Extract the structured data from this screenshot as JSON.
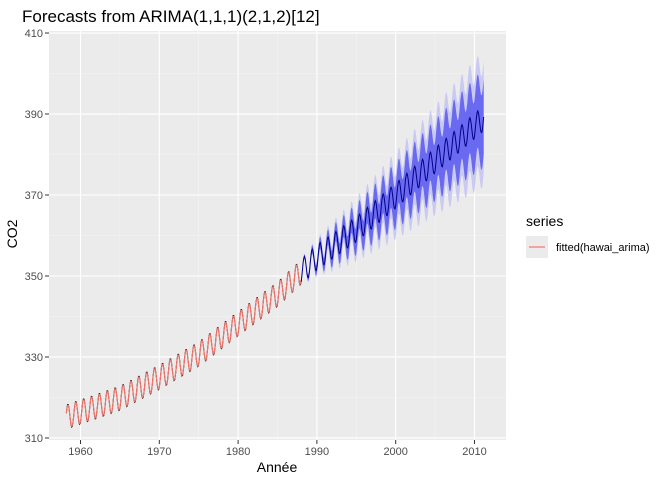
{
  "chart_data": {
    "type": "line",
    "title": "Forecasts from ARIMA(1,1,1)(2,1,2)[12]",
    "xlabel": "Année",
    "ylabel": "CO2",
    "xlim": [
      1956.0,
      2014.0
    ],
    "ylim": [
      309.5,
      410.5
    ],
    "x_ticks": [
      1960,
      1970,
      1980,
      1990,
      2000,
      2010
    ],
    "y_ticks": [
      310,
      330,
      350,
      370,
      390,
      410
    ],
    "grid": true,
    "legend": {
      "title": "series",
      "position": "right",
      "entries": [
        {
          "label": "fitted(hawai_arima)",
          "color": "#f8766d"
        }
      ]
    },
    "series": [
      {
        "name": "fitted(hawai_arima)",
        "role": "fitted",
        "color": "#f8766d",
        "x_start": 1958.2,
        "x_end": 1988.0,
        "trend_knots": [
          [
            1958.2,
            315.2
          ],
          [
            1965,
            319.8
          ],
          [
            1970,
            325.0
          ],
          [
            1975,
            330.7
          ],
          [
            1980,
            338.2
          ],
          [
            1985,
            345.5
          ],
          [
            1988.0,
            351.0
          ]
        ],
        "seasonal_amplitude": 2.8
      },
      {
        "role": "observed",
        "color": "#000000",
        "x_start": 1958.2,
        "x_end": 1988.0,
        "trend_knots": [
          [
            1958.2,
            315.2
          ],
          [
            1965,
            319.8
          ],
          [
            1970,
            325.0
          ],
          [
            1975,
            330.7
          ],
          [
            1980,
            338.2
          ],
          [
            1985,
            345.5
          ],
          [
            1988.0,
            351.0
          ]
        ],
        "seasonal_amplitude": 3.0
      },
      {
        "role": "forecast",
        "color": "#00008b",
        "x_start": 1988.0,
        "x_end": 2011.2,
        "trend_knots": [
          [
            1988.0,
            351.0
          ],
          [
            1990,
            354.6
          ],
          [
            1995,
            361.5
          ],
          [
            2000,
            369.8
          ],
          [
            2005,
            378.5
          ],
          [
            2011.2,
            389.0
          ]
        ],
        "seasonal_amplitude": 3.1
      }
    ],
    "intervals": [
      {
        "level": 95,
        "color": "#c9c9f4",
        "halfwidth_start": 0.4,
        "halfwidth_end": 14.0
      },
      {
        "level": 80,
        "color": "#6a6af0",
        "halfwidth_start": 0.3,
        "halfwidth_end": 9.3
      }
    ],
    "colors": {
      "panel_background": "#ebebeb",
      "grid_major": "#ffffff",
      "grid_minor": "#f4f4f4"
    }
  }
}
